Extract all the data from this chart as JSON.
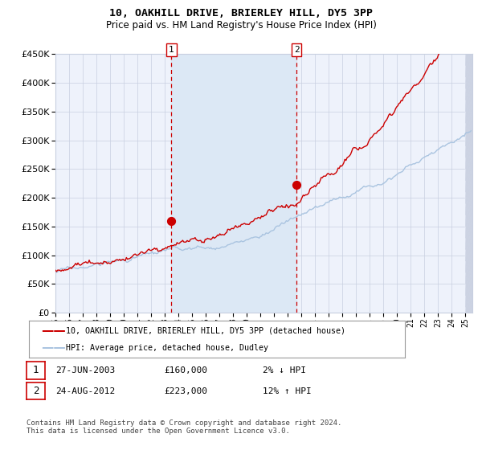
{
  "title1": "10, OAKHILL DRIVE, BRIERLEY HILL, DY5 3PP",
  "title2": "Price paid vs. HM Land Registry's House Price Index (HPI)",
  "legend_line1": "10, OAKHILL DRIVE, BRIERLEY HILL, DY5 3PP (detached house)",
  "legend_line2": "HPI: Average price, detached house, Dudley",
  "footnote": "Contains HM Land Registry data © Crown copyright and database right 2024.\nThis data is licensed under the Open Government Licence v3.0.",
  "annotation1_date": "27-JUN-2003",
  "annotation1_price": "£160,000",
  "annotation1_hpi": "2% ↓ HPI",
  "annotation2_date": "24-AUG-2012",
  "annotation2_price": "£223,000",
  "annotation2_hpi": "12% ↑ HPI",
  "sale1_year": 2003.49,
  "sale1_value": 160000,
  "sale2_year": 2012.65,
  "sale2_value": 223000,
  "ylim": [
    0,
    450000
  ],
  "xlim_start": 1995,
  "xlim_end": 2025.5,
  "hpi_color": "#aac4e0",
  "price_color": "#cc0000",
  "bg_color": "#eef2fb",
  "shade_color": "#dce8f5",
  "grid_color": "#c8cfe0",
  "vline_color": "#cc0000",
  "hatch_color": "#c8cfe0"
}
